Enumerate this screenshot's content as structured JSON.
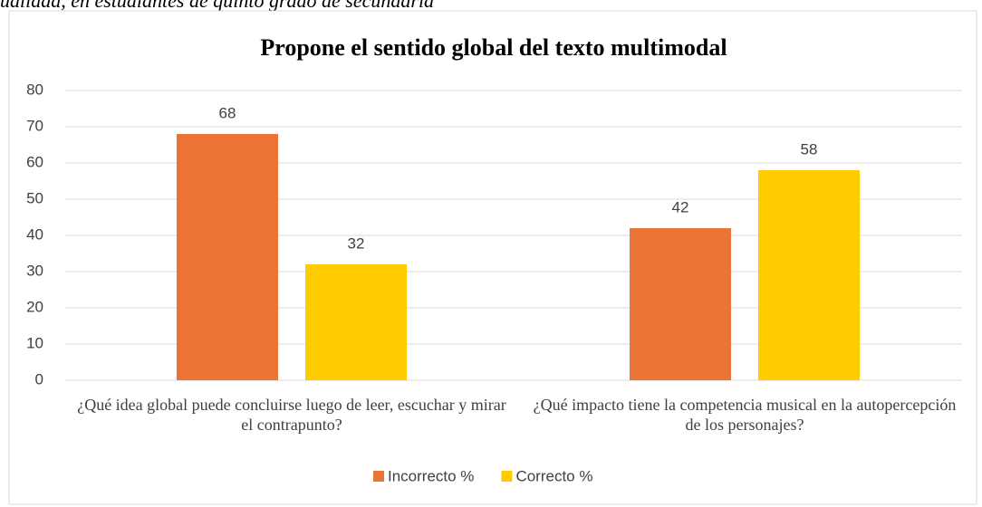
{
  "caption": "ualidad, en estudiantes de quinto grado de secundaria",
  "chart_data": {
    "type": "bar",
    "title": "Propone el sentido global del texto multimodal",
    "categories": [
      "¿Qué idea global puede concluirse luego de leer, escuchar y mirar el contrapunto?",
      "¿Qué impacto tiene la competencia musical en la autopercepción de los personajes?"
    ],
    "series": [
      {
        "name": "Incorrecto %",
        "color": "#EA7335",
        "values": [
          68,
          42
        ]
      },
      {
        "name": "Correcto %",
        "color": "#FFCC00",
        "values": [
          32,
          58
        ]
      }
    ],
    "ylim": [
      0,
      80
    ],
    "yticks": [
      0,
      10,
      20,
      30,
      40,
      50,
      60,
      70,
      80
    ],
    "grid": true,
    "legend": "bottom"
  }
}
